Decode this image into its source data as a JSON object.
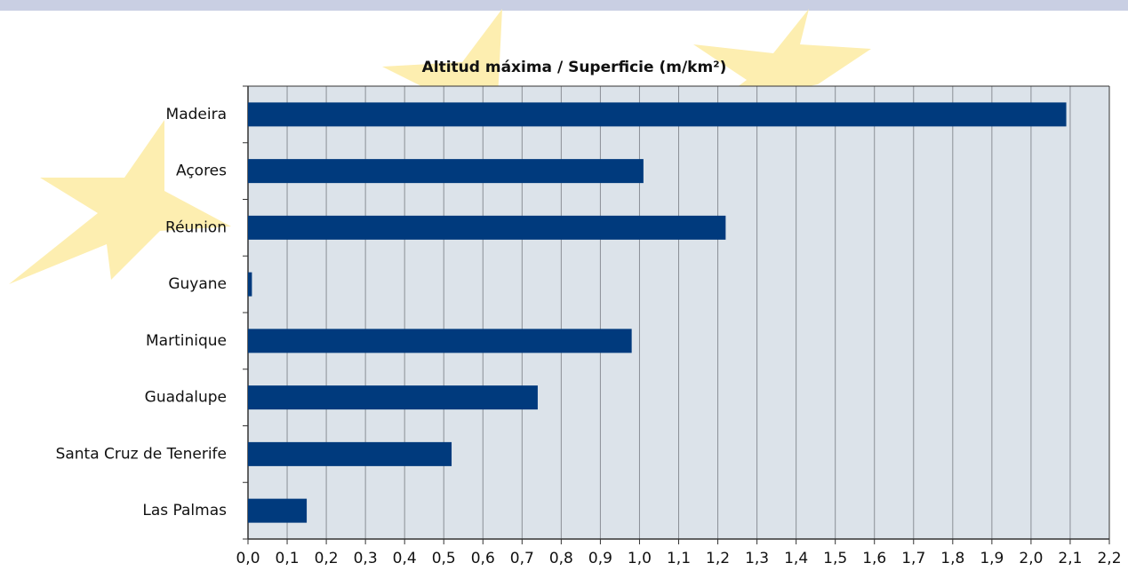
{
  "chart_data": {
    "type": "bar",
    "orientation": "horizontal",
    "title": "Altitud máxima / Superficie (m/km²)",
    "categories": [
      "Madeira",
      "Açores",
      "Réunion",
      "Guyane",
      "Martinique",
      "Guadalupe",
      "Santa Cruz de Tenerife",
      "Las Palmas"
    ],
    "values": [
      2.09,
      1.01,
      1.22,
      0.01,
      0.98,
      0.74,
      0.52,
      0.15
    ],
    "color": "#003a7d",
    "xlim": [
      0,
      2.2
    ],
    "xticks": [
      {
        "value": 0,
        "label": "0,0"
      },
      {
        "value": 0.1,
        "label": "0,1"
      },
      {
        "value": 0.2,
        "label": "0,2"
      },
      {
        "value": 0.3,
        "label": "0,3"
      },
      {
        "value": 0.4,
        "label": "0,4"
      },
      {
        "value": 0.5,
        "label": "0,5"
      },
      {
        "value": 0.6,
        "label": "0,6"
      },
      {
        "value": 0.7,
        "label": "0,7"
      },
      {
        "value": 0.8,
        "label": "0,8"
      },
      {
        "value": 0.9,
        "label": "0,9"
      },
      {
        "value": 1.0,
        "label": "1,0"
      },
      {
        "value": 1.1,
        "label": "1,1"
      },
      {
        "value": 1.2,
        "label": "1,2"
      },
      {
        "value": 1.3,
        "label": "1,3"
      },
      {
        "value": 1.4,
        "label": "1,4"
      },
      {
        "value": 1.5,
        "label": "1,5"
      },
      {
        "value": 1.6,
        "label": "1,6"
      },
      {
        "value": 1.7,
        "label": "1,7"
      },
      {
        "value": 1.8,
        "label": "1,8"
      },
      {
        "value": 1.9,
        "label": "1,9"
      },
      {
        "value": 2.0,
        "label": "2,0"
      },
      {
        "value": 2.1,
        "label": "2,1"
      },
      {
        "value": 2.2,
        "label": "2,2"
      }
    ],
    "grid": true
  }
}
